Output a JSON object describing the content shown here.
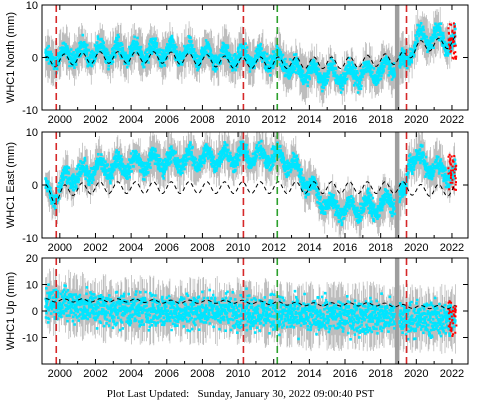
{
  "footer": {
    "label": "Plot Last Updated:",
    "value": "Sunday, January 30, 2022 09:00:40 PST"
  },
  "colors": {
    "data": "#00e5ff",
    "error_bars": "#bdbdbd",
    "model": "#000000",
    "recent": "#ff0000",
    "event_red": "#d62728",
    "event_green": "#2ca02c",
    "gap": "#9e9e9e"
  },
  "chart_data": [
    {
      "type": "scatter",
      "ylabel": "WHC1 North (mm)",
      "xlim": [
        1999,
        2022.9
      ],
      "ylim": [
        -10,
        10
      ],
      "x_ticks": [
        2000,
        2002,
        2004,
        2006,
        2008,
        2010,
        2012,
        2014,
        2016,
        2018,
        2020,
        2022
      ],
      "y_ticks": [
        -10,
        0,
        10
      ],
      "event_lines": [
        {
          "x": 1999.8,
          "color": "red"
        },
        {
          "x": 2010.3,
          "color": "red"
        },
        {
          "x": 2012.2,
          "color": "green"
        },
        {
          "x": 2019.45,
          "color": "red"
        }
      ],
      "gap_span": [
        2018.8,
        2019.05
      ],
      "series": [
        {
          "values_x": [
            1999.2,
            2000,
            2002,
            2004,
            2006,
            2008,
            2010,
            2011,
            2012.3,
            2013,
            2014,
            2016,
            2018,
            2019.4,
            2020,
            2021,
            2022.2
          ],
          "values_y": [
            -1,
            0.5,
            1,
            1,
            1,
            0.5,
            0,
            0,
            -0.5,
            -2,
            -3,
            -3.5,
            -2.5,
            -1,
            3.5,
            4,
            3
          ]
        }
      ],
      "model": {
        "values_x": [
          1999.2,
          2000,
          2002,
          2004,
          2006,
          2008,
          2010,
          2012,
          2014,
          2016,
          2018,
          2019.4,
          2020,
          2022.2
        ],
        "values_y": [
          -1,
          -0.5,
          0,
          0,
          0,
          -0.5,
          -1,
          -1,
          -1,
          -1,
          -0.5,
          0,
          2,
          3
        ]
      }
    },
    {
      "type": "scatter",
      "ylabel": "WHC1 East (mm)",
      "xlim": [
        1999,
        2022.9
      ],
      "ylim": [
        -10,
        10
      ],
      "x_ticks": [
        2000,
        2002,
        2004,
        2006,
        2008,
        2010,
        2012,
        2014,
        2016,
        2018,
        2020,
        2022
      ],
      "y_ticks": [
        -10,
        0,
        10
      ],
      "event_lines": [
        {
          "x": 1999.8,
          "color": "red"
        },
        {
          "x": 2010.3,
          "color": "red"
        },
        {
          "x": 2012.2,
          "color": "green"
        },
        {
          "x": 2019.45,
          "color": "red"
        }
      ],
      "gap_span": [
        2018.8,
        2019.05
      ],
      "series": [
        {
          "values_x": [
            1999.2,
            1999.7,
            2000.3,
            2002,
            2004,
            2006,
            2008,
            2010,
            2012,
            2013,
            2014,
            2015,
            2016,
            2018,
            2019.4,
            2019.6,
            2020,
            2021,
            2022.2
          ],
          "values_y": [
            -1,
            -2.5,
            1,
            3,
            4,
            4.5,
            5,
            5.5,
            5.5,
            4,
            0,
            -4,
            -4.5,
            -4,
            -2,
            5.5,
            5,
            3,
            2
          ]
        }
      ],
      "model": {
        "values_x": [
          1999.2,
          1999.7,
          2000.3,
          2002,
          2004,
          2006,
          2008,
          2010,
          2012,
          2014,
          2016,
          2018,
          2019.4,
          2020,
          2022.2
        ],
        "values_y": [
          -1,
          -2.5,
          -1,
          -0.5,
          -0.5,
          -0.5,
          -0.5,
          -0.5,
          -0.5,
          -0.5,
          -0.5,
          -0.5,
          -0.5,
          -1,
          -1
        ]
      }
    },
    {
      "type": "scatter",
      "ylabel": "WHC1 Up (mm)",
      "xlim": [
        1999,
        2022.9
      ],
      "ylim": [
        -20,
        20
      ],
      "x_ticks": [
        2000,
        2002,
        2004,
        2006,
        2008,
        2010,
        2012,
        2014,
        2016,
        2018,
        2020,
        2022
      ],
      "y_ticks": [
        -10,
        0,
        10,
        20
      ],
      "event_lines": [
        {
          "x": 1999.8,
          "color": "red"
        },
        {
          "x": 2010.3,
          "color": "red"
        },
        {
          "x": 2012.2,
          "color": "green"
        },
        {
          "x": 2019.45,
          "color": "red"
        }
      ],
      "gap_span": [
        2018.8,
        2019.05
      ],
      "series": [
        {
          "values_x": [
            1999.2,
            2000,
            2002,
            2004,
            2006,
            2008,
            2010,
            2012,
            2014,
            2016,
            2018,
            2020,
            2022.2
          ],
          "values_y": [
            4,
            3,
            1,
            0.5,
            0,
            0,
            0,
            -1,
            -2,
            -2,
            -2,
            -3,
            -3
          ]
        }
      ],
      "model": {
        "values_x": [
          1999.2,
          2000,
          2002,
          2004,
          2006,
          2008,
          2010,
          2012,
          2014,
          2016,
          2018,
          2020,
          2022.2
        ],
        "values_y": [
          4,
          4,
          4,
          4,
          3.5,
          3.5,
          3.5,
          3,
          2.5,
          2.5,
          2.5,
          1.5,
          1.5
        ]
      }
    }
  ]
}
